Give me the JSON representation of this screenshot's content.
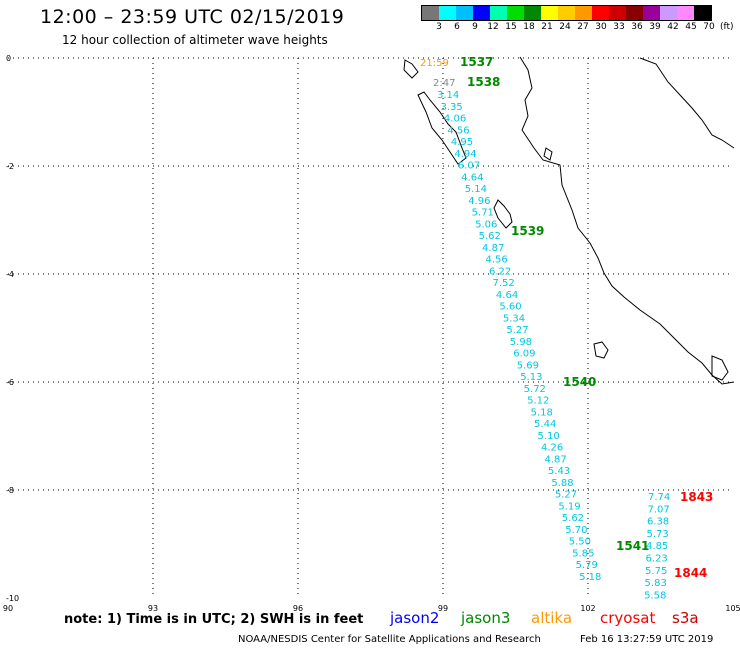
{
  "header": {
    "title": "12:00 – 23:59 UTC 02/15/2019",
    "subtitle": "12 hour collection of altimeter wave heights"
  },
  "legend": {
    "colors": [
      "#777777",
      "#00ffff",
      "#00bfff",
      "#0000ff",
      "#00ffb0",
      "#00dd00",
      "#008800",
      "#ffff00",
      "#ffcc00",
      "#ff9900",
      "#ff0000",
      "#cc0000",
      "#880000",
      "#990099",
      "#cc99ff",
      "#ff88ff",
      "#000000"
    ],
    "labels": [
      "3",
      "6",
      "9",
      "12",
      "15",
      "18",
      "21",
      "24",
      "27",
      "30",
      "33",
      "36",
      "39",
      "42",
      "45",
      "70"
    ],
    "unit": "(ft)"
  },
  "axes": {
    "lon_ticks": [
      "90",
      "93",
      "96",
      "99",
      "102",
      "105"
    ],
    "lat_ticks": [
      "0",
      "-2",
      "-4",
      "-6",
      "-8",
      "-10"
    ]
  },
  "tracks": {
    "jason3_times": [
      "1537",
      "1538",
      "1539",
      "1540",
      "1541"
    ],
    "cryosat_times": [
      "1843",
      "1844"
    ],
    "altika_time": "21:59",
    "grey_time": "2:47",
    "main_track_values": [
      "3.14",
      "3.35",
      "4.06",
      "4.56",
      "4.95",
      "4.94",
      "6.07",
      "4.64",
      "5.14",
      "4.96",
      "5.71",
      "5.06",
      "5.62",
      "4.87",
      "4.56",
      "6.22",
      "7.52",
      "4.64",
      "5.60",
      "5.34",
      "5.27",
      "5.98",
      "6.09",
      "5.69",
      "5.13",
      "5.72",
      "5.12",
      "5.18",
      "5.44",
      "5.10",
      "4.26",
      "4.87",
      "5.43",
      "5.88",
      "5.27",
      "5.19",
      "5.62",
      "5.70",
      "5.50",
      "5.85",
      "5.79",
      "5.18"
    ],
    "second_track_values": [
      "7.74",
      "7.07",
      "6.38",
      "5.73",
      "4.85",
      "6.23",
      "5.75",
      "5.83",
      "5.58"
    ]
  },
  "footer": {
    "note": "note:  1) Time is in UTC;  2) SWH is in feet",
    "missions": [
      "jason2",
      "jason3",
      "altika",
      "cryosat",
      "s3a"
    ],
    "mission_colors": [
      "#0000ff",
      "#008800",
      "#ff9900",
      "#ff0000",
      "#cc0000"
    ],
    "credit": "NOAA/NESDIS Center for Satellite Applications and Research",
    "timestamp": "Feb 16 13:27:59 UTC 2019"
  }
}
